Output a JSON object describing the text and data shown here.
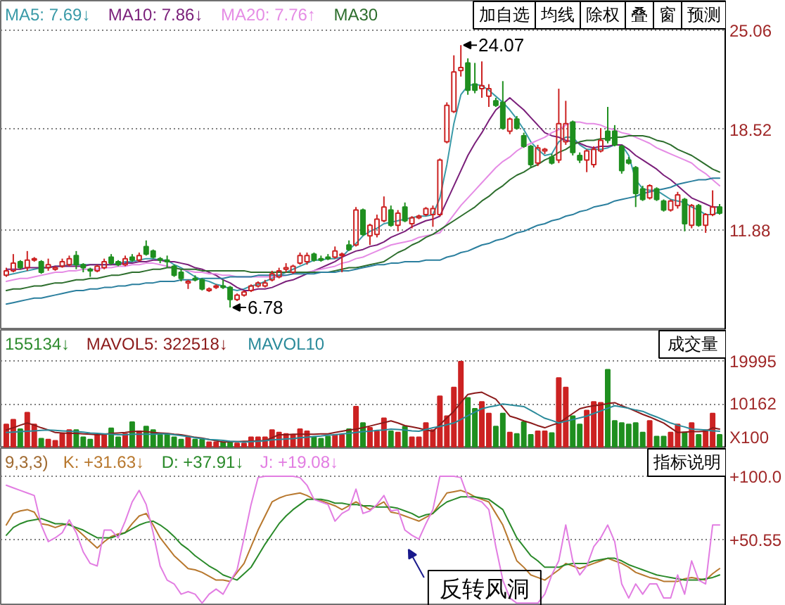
{
  "chart_data": [
    {
      "type": "candlestick",
      "legend": "top left",
      "grid": "y",
      "tick_labels": "y",
      "ylim": [
        5.3,
        27.0
      ],
      "yticks": [
        25.06,
        18.52,
        11.88
      ],
      "categories": [
        null,
        null,
        null,
        null,
        null,
        null,
        null,
        null,
        null,
        null,
        null,
        null,
        null,
        null,
        null,
        null,
        null,
        null,
        null,
        null,
        null,
        null,
        null,
        null,
        null,
        null,
        null,
        null,
        null,
        null,
        null,
        null,
        null,
        null,
        null,
        null,
        null,
        null,
        null,
        null,
        null,
        null,
        null,
        null,
        null,
        null,
        null,
        null,
        null,
        null,
        null,
        null,
        null,
        null,
        null,
        null,
        null,
        null,
        null,
        null,
        null,
        null,
        null,
        null,
        null,
        null,
        null,
        null,
        null,
        null,
        null,
        null,
        null,
        null,
        null,
        null,
        null,
        null,
        null,
        null,
        null,
        null,
        null,
        null,
        null,
        null,
        null,
        null,
        null,
        null,
        null,
        null,
        null,
        null,
        null,
        null,
        null,
        null,
        null,
        null,
        null,
        null,
        null
      ],
      "ohlc": [
        [
          8.9,
          9.4,
          8.8,
          9.2
        ],
        [
          9.2,
          10.3,
          9.1,
          9.7
        ],
        [
          9.8,
          9.9,
          9.3,
          9.4
        ],
        [
          9.4,
          10.5,
          9.2,
          9.9
        ],
        [
          9.9,
          10.1,
          9.8,
          10.0
        ],
        [
          9.8,
          9.9,
          9.0,
          9.1
        ],
        [
          9.4,
          10.0,
          9.2,
          9.6
        ],
        [
          9.3,
          9.5,
          9.2,
          9.4
        ],
        [
          9.5,
          10.0,
          9.4,
          9.8
        ],
        [
          9.6,
          10.2,
          9.5,
          10.0
        ],
        [
          10.2,
          10.5,
          9.3,
          9.6
        ],
        [
          9.6,
          9.7,
          9.1,
          9.4
        ],
        [
          9.3,
          9.4,
          8.8,
          9.2
        ],
        [
          9.2,
          9.6,
          9.1,
          9.5
        ],
        [
          9.4,
          10.0,
          9.3,
          9.8
        ],
        [
          10.1,
          10.3,
          9.6,
          9.7
        ],
        [
          9.8,
          9.9,
          9.5,
          9.6
        ],
        [
          9.6,
          10.2,
          9.5,
          10.0
        ],
        [
          10.1,
          10.3,
          9.8,
          9.9
        ],
        [
          9.9,
          10.4,
          9.8,
          10.2
        ],
        [
          10.8,
          11.2,
          10.2,
          10.3
        ],
        [
          10.5,
          10.6,
          10.0,
          10.1
        ],
        [
          10.0,
          10.1,
          9.7,
          9.9
        ],
        [
          9.9,
          10.2,
          9.4,
          9.8
        ],
        [
          9.5,
          9.6,
          8.8,
          8.9
        ],
        [
          9.1,
          9.3,
          8.5,
          8.7
        ],
        [
          8.4,
          8.6,
          8.0,
          8.5
        ],
        [
          8.7,
          8.9,
          8.5,
          8.6
        ],
        [
          8.6,
          8.7,
          7.9,
          8.0
        ],
        [
          7.9,
          8.1,
          7.8,
          8.0
        ],
        [
          8.1,
          8.3,
          8.0,
          8.2
        ],
        [
          8.2,
          8.6,
          8.0,
          8.1
        ],
        [
          8.1,
          8.2,
          6.78,
          7.3
        ],
        [
          7.3,
          7.7,
          7.2,
          7.6
        ],
        [
          7.6,
          7.9,
          7.5,
          7.8
        ],
        [
          7.9,
          8.3,
          7.8,
          8.2
        ],
        [
          8.2,
          8.5,
          8.1,
          8.4
        ],
        [
          8.2,
          8.6,
          8.1,
          8.4
        ],
        [
          8.6,
          9.2,
          8.5,
          9.0
        ],
        [
          8.8,
          9.4,
          8.7,
          9.2
        ],
        [
          9.3,
          9.7,
          9.1,
          9.4
        ],
        [
          9.1,
          9.6,
          9.0,
          9.5
        ],
        [
          9.7,
          10.4,
          9.6,
          10.2
        ],
        [
          9.8,
          10.4,
          9.6,
          10.2
        ],
        [
          10.3,
          10.4,
          9.8,
          9.9
        ],
        [
          10.0,
          10.2,
          9.8,
          9.9
        ],
        [
          10.1,
          10.3,
          9.9,
          10.0
        ],
        [
          10.1,
          10.8,
          10.0,
          10.5
        ],
        [
          10.2,
          10.4,
          9.1,
          10.3
        ],
        [
          10.9,
          11.2,
          10.5,
          10.6
        ],
        [
          10.9,
          13.4,
          10.8,
          13.2
        ],
        [
          13.2,
          13.3,
          11.5,
          11.6
        ],
        [
          11.5,
          12.3,
          10.9,
          12.2
        ],
        [
          11.6,
          12.9,
          11.4,
          12.6
        ],
        [
          12.5,
          14.1,
          12.4,
          13.4
        ],
        [
          13.2,
          13.5,
          12.1,
          12.2
        ],
        [
          12.2,
          13.2,
          11.8,
          13.0
        ],
        [
          13.4,
          13.7,
          12.4,
          12.5
        ],
        [
          12.3,
          12.8,
          12.0,
          12.7
        ],
        [
          12.7,
          12.9,
          12.6,
          12.8
        ],
        [
          12.9,
          13.4,
          12.8,
          13.3
        ],
        [
          12.9,
          13.5,
          12.1,
          13.3
        ],
        [
          12.9,
          16.6,
          12.8,
          16.5
        ],
        [
          17.7,
          20.3,
          17.6,
          20.1
        ],
        [
          19.7,
          23.4,
          19.6,
          22.3
        ],
        [
          22.4,
          24.07,
          22.0,
          22.6
        ],
        [
          22.9,
          23.2,
          20.8,
          21.1
        ],
        [
          21.5,
          22.9,
          20.9,
          21.1
        ],
        [
          21.2,
          23.0,
          20.6,
          21.4
        ],
        [
          20.7,
          21.5,
          20.0,
          21.2
        ],
        [
          20.4,
          20.6,
          20.0,
          20.1
        ],
        [
          20.3,
          21.7,
          18.5,
          18.6
        ],
        [
          18.4,
          19.3,
          18.2,
          19.2
        ],
        [
          19.2,
          19.4,
          18.5,
          18.6
        ],
        [
          18.1,
          18.3,
          17.3,
          17.4
        ],
        [
          17.4,
          17.5,
          16.0,
          16.2
        ],
        [
          16.3,
          17.5,
          16.1,
          17.3
        ],
        [
          17.1,
          17.3,
          16.9,
          17.2
        ],
        [
          16.7,
          16.9,
          16.2,
          16.3
        ],
        [
          16.5,
          21.2,
          16.3,
          18.9
        ],
        [
          17.7,
          20.4,
          17.5,
          18.9
        ],
        [
          19.0,
          19.1,
          16.8,
          17.0
        ],
        [
          16.8,
          17.0,
          16.3,
          16.5
        ],
        [
          16.5,
          17.2,
          15.7,
          17.1
        ],
        [
          16.2,
          17.4,
          16.0,
          17.2
        ],
        [
          17.1,
          18.6,
          17.0,
          17.8
        ],
        [
          18.4,
          20.0,
          17.6,
          17.8
        ],
        [
          18.4,
          18.8,
          17.4,
          17.5
        ],
        [
          17.4,
          17.5,
          15.6,
          15.8
        ],
        [
          16.5,
          16.7,
          16.2,
          16.3
        ],
        [
          16.0,
          16.1,
          13.4,
          14.3
        ],
        [
          14.6,
          14.8,
          13.8,
          13.9
        ],
        [
          14.0,
          14.9,
          13.9,
          14.8
        ],
        [
          14.6,
          14.7,
          13.8,
          13.9
        ],
        [
          13.8,
          13.9,
          13.1,
          13.2
        ],
        [
          13.2,
          13.9,
          13.1,
          13.8
        ],
        [
          13.5,
          14.4,
          13.3,
          14.2
        ],
        [
          13.9,
          14.0,
          11.8,
          12.3
        ],
        [
          12.2,
          13.6,
          12.0,
          13.5
        ],
        [
          13.5,
          13.6,
          12.1,
          12.2
        ],
        [
          12.2,
          13.0,
          11.7,
          12.9
        ],
        [
          12.9,
          14.5,
          12.8,
          13.4
        ],
        [
          13.4,
          13.6,
          12.9,
          13.0
        ]
      ],
      "colors": [
        "#cc2222",
        "#cc2222",
        "#1f8f1f",
        "#cc2222",
        "#cc2222",
        "#1f8f1f",
        "#cc2222",
        "#cc2222",
        "#cc2222",
        "#cc2222",
        "#1f8f1f",
        "#1f8f1f",
        "#1f8f1f",
        "#cc2222",
        "#cc2222",
        "#1f8f1f",
        "#1f8f1f",
        "#cc2222",
        "#1f8f1f",
        "#cc2222",
        "#1f8f1f",
        "#1f8f1f",
        "#1f8f1f",
        "#1f8f1f",
        "#1f8f1f",
        "#1f8f1f",
        "#cc2222",
        "#1f8f1f",
        "#1f8f1f",
        "#cc2222",
        "#cc2222",
        "#1f8f1f",
        "#1f8f1f",
        "#cc2222",
        "#cc2222",
        "#cc2222",
        "#cc2222",
        "#cc2222",
        "#cc2222",
        "#cc2222",
        "#cc2222",
        "#cc2222",
        "#cc2222",
        "#cc2222",
        "#1f8f1f",
        "#1f8f1f",
        "#1f8f1f",
        "#cc2222",
        "#cc2222",
        "#1f8f1f",
        "#cc2222",
        "#1f8f1f",
        "#cc2222",
        "#cc2222",
        "#cc2222",
        "#1f8f1f",
        "#cc2222",
        "#1f8f1f",
        "#cc2222",
        "#cc2222",
        "#cc2222",
        "#cc2222",
        "#cc2222",
        "#cc2222",
        "#cc2222",
        "#cc2222",
        "#1f8f1f",
        "#1f8f1f",
        "#cc2222",
        "#cc2222",
        "#1f8f1f",
        "#1f8f1f",
        "#cc2222",
        "#1f8f1f",
        "#1f8f1f",
        "#1f8f1f",
        "#cc2222",
        "#cc2222",
        "#1f8f1f",
        "#cc2222",
        "#cc2222",
        "#1f8f1f",
        "#1f8f1f",
        "#cc2222",
        "#cc2222",
        "#cc2222",
        "#1f8f1f",
        "#1f8f1f",
        "#1f8f1f",
        "#1f8f1f",
        "#1f8f1f",
        "#1f8f1f",
        "#cc2222",
        "#1f8f1f",
        "#1f8f1f",
        "#cc2222",
        "#cc2222",
        "#1f8f1f",
        "#cc2222",
        "#1f8f1f",
        "#cc2222",
        "#cc2222",
        "#1f8f1f"
      ],
      "series": [
        {
          "name": "MA5: 7.69↓",
          "type": "line",
          "color": "#3a9aa8",
          "values": [
            8.9,
            9.0,
            9.1,
            9.2,
            9.3,
            9.4,
            9.4,
            9.5,
            9.5,
            9.6,
            9.6,
            9.6,
            9.6,
            9.6,
            9.6,
            9.6,
            9.7,
            9.8,
            9.8,
            9.9,
            10.0,
            10.0,
            9.9,
            9.9,
            9.6,
            9.4,
            9.1,
            8.8,
            8.6,
            8.5,
            8.3,
            8.2,
            8.0,
            7.9,
            8.0,
            8.2,
            8.3,
            8.5,
            8.7,
            8.9,
            9.1,
            9.3,
            9.5,
            9.7,
            9.9,
            9.9,
            10.0,
            10.0,
            10.1,
            10.6,
            11.0,
            11.5,
            11.8,
            12.0,
            12.3,
            12.4,
            12.5,
            12.6,
            12.7,
            12.8,
            12.8,
            12.9,
            14.0,
            16.2,
            18.9,
            20.8,
            21.4,
            21.5,
            21.4,
            21.1,
            20.7,
            20.3,
            19.8,
            19.2,
            18.5,
            17.7,
            17.2,
            16.8,
            16.9,
            17.7,
            18.0,
            18.0,
            17.5,
            17.2,
            17.2,
            17.2,
            17.3,
            17.5,
            17.5,
            16.8,
            15.2,
            14.6,
            14.5,
            14.5,
            14.2,
            13.9,
            13.8,
            13.7,
            13.4,
            13.2,
            12.9,
            12.9,
            13.1
          ]
        },
        {
          "name": "MA10: 7.86↓",
          "type": "line",
          "color": "#7a1f7a",
          "values": [
            9.3,
            9.3,
            9.3,
            9.4,
            9.4,
            9.4,
            9.4,
            9.5,
            9.5,
            9.5,
            9.5,
            9.5,
            9.6,
            9.6,
            9.6,
            9.6,
            9.6,
            9.7,
            9.7,
            9.8,
            9.8,
            9.9,
            9.9,
            9.8,
            9.8,
            9.7,
            9.6,
            9.4,
            9.3,
            9.1,
            8.9,
            8.6,
            8.4,
            8.1,
            7.9,
            7.9,
            8.0,
            8.0,
            8.1,
            8.3,
            8.5,
            8.6,
            8.8,
            9.0,
            9.2,
            9.4,
            9.6,
            9.8,
            10.1,
            10.3,
            10.5,
            10.6,
            10.8,
            10.9,
            11.1,
            11.4,
            11.6,
            11.8,
            12.1,
            12.3,
            12.5,
            12.6,
            12.8,
            13.8,
            14.8,
            15.8,
            16.8,
            17.6,
            18.3,
            19.1,
            19.8,
            20.2,
            20.6,
            20.2,
            19.8,
            19.3,
            18.8,
            18.3,
            18.1,
            18.0,
            17.8,
            17.7,
            17.6,
            17.4,
            17.3,
            17.4,
            17.4,
            17.5,
            17.5,
            17.2,
            16.8,
            16.5,
            16.2,
            15.9,
            15.5,
            15.2,
            14.8,
            14.4,
            14.0,
            13.8,
            13.6,
            13.4,
            13.4
          ]
        },
        {
          "name": "MA20: 7.76↑",
          "type": "line",
          "color": "#e58ce5",
          "values": [
            8.5,
            8.6,
            8.7,
            8.7,
            8.8,
            8.9,
            9.0,
            9.1,
            9.1,
            9.2,
            9.2,
            9.3,
            9.3,
            9.3,
            9.4,
            9.4,
            9.5,
            9.5,
            9.6,
            9.6,
            9.7,
            9.7,
            9.6,
            9.5,
            9.4,
            9.3,
            9.2,
            9.1,
            9.1,
            9.0,
            9.0,
            8.9,
            8.9,
            8.8,
            8.8,
            8.8,
            8.8,
            8.8,
            8.8,
            8.8,
            8.9,
            9.0,
            9.1,
            9.1,
            9.2,
            9.3,
            9.4,
            9.5,
            9.7,
            9.8,
            10.0,
            10.1,
            10.3,
            10.5,
            10.7,
            10.9,
            11.0,
            11.1,
            11.2,
            11.4,
            11.5,
            11.6,
            11.7,
            12.3,
            12.9,
            13.5,
            14.0,
            14.5,
            15.0,
            15.5,
            16.0,
            16.4,
            16.7,
            17.1,
            17.4,
            17.6,
            17.8,
            18.0,
            18.3,
            18.5,
            18.8,
            19.0,
            19.0,
            18.9,
            18.9,
            18.8,
            18.6,
            18.5,
            18.3,
            18.2,
            18.0,
            17.8,
            17.6,
            17.3,
            17.1,
            16.9,
            16.7,
            16.5,
            16.3,
            15.9,
            15.6,
            15.2,
            14.8
          ]
        },
        {
          "name": "MA30",
          "type": "line",
          "color": "#2d6e2d",
          "values": [
            7.9,
            8.0,
            8.0,
            8.1,
            8.2,
            8.2,
            8.3,
            8.4,
            8.4,
            8.5,
            8.6,
            8.6,
            8.7,
            8.7,
            8.8,
            8.9,
            8.9,
            9.0,
            9.1,
            9.1,
            9.2,
            9.3,
            9.3,
            9.4,
            9.4,
            9.3,
            9.3,
            9.3,
            9.2,
            9.2,
            9.2,
            9.2,
            9.2,
            9.2,
            9.2,
            9.1,
            9.1,
            9.1,
            9.1,
            9.1,
            9.1,
            9.1,
            9.1,
            9.1,
            9.1,
            9.1,
            9.1,
            9.2,
            9.3,
            9.4,
            9.4,
            9.5,
            9.6,
            9.7,
            9.8,
            10.1,
            10.4,
            10.6,
            10.9,
            11.1,
            11.4,
            11.6,
            11.9,
            12.2,
            12.5,
            12.8,
            13.1,
            13.4,
            13.8,
            14.1,
            14.5,
            14.8,
            15.2,
            15.5,
            15.7,
            16.0,
            16.2,
            16.5,
            16.7,
            17.0,
            17.2,
            17.5,
            17.7,
            17.8,
            17.8,
            17.9,
            17.9,
            18.0,
            18.0,
            18.1,
            18.1,
            18.1,
            18.0,
            17.8,
            17.7,
            17.5,
            17.2,
            17.0,
            16.8,
            16.5,
            16.2,
            15.9,
            15.7
          ]
        },
        {
          "type": "line",
          "color": "#2b7f9e",
          "values": [
            7.0,
            7.1,
            7.2,
            7.3,
            7.4,
            7.4,
            7.5,
            7.6,
            7.7,
            7.8,
            7.9,
            7.9,
            8.0,
            8.0,
            8.1,
            8.1,
            8.2,
            8.2,
            8.3,
            8.3,
            8.4,
            8.4,
            8.5,
            8.5,
            8.5,
            8.6,
            8.6,
            8.6,
            8.7,
            8.7,
            8.7,
            8.7,
            8.8,
            8.8,
            8.8,
            8.8,
            8.9,
            8.9,
            8.9,
            8.9,
            8.9,
            9.0,
            9.0,
            9.0,
            9.0,
            9.1,
            9.1,
            9.1,
            9.2,
            9.2,
            9.3,
            9.4,
            9.5,
            9.6,
            9.6,
            9.7,
            9.7,
            9.8,
            9.8,
            9.8,
            9.9,
            9.9,
            9.9,
            10.1,
            10.2,
            10.4,
            10.5,
            10.7,
            10.9,
            11.0,
            11.2,
            11.3,
            11.5,
            11.7,
            11.8,
            12.0,
            12.2,
            12.3,
            12.5,
            12.6,
            12.8,
            12.9,
            13.1,
            13.2,
            13.4,
            13.5,
            13.6,
            13.8,
            13.9,
            14.0,
            14.1,
            14.3,
            14.4,
            14.5,
            14.6,
            14.7,
            14.9,
            15.0,
            15.1,
            15.2,
            15.2,
            15.3,
            15.3
          ]
        }
      ],
      "annotations": [
        "24.07",
        "6.78",
        "加自选",
        "均线",
        "除权",
        "叠",
        "窗",
        "预测"
      ]
    },
    {
      "type": "bar",
      "legend": "top left",
      "grid": "y",
      "tick_labels": "y",
      "ylim": [
        0,
        27300
      ],
      "yticks": [
        19995,
        10162
      ],
      "categories": [
        null,
        null,
        null,
        null,
        null,
        null,
        null,
        null,
        null,
        null,
        null,
        null,
        null,
        null,
        null,
        null,
        null,
        null,
        null,
        null,
        null,
        null,
        null,
        null,
        null,
        null,
        null,
        null,
        null,
        null,
        null,
        null,
        null,
        null,
        null,
        null,
        null,
        null,
        null,
        null,
        null,
        null,
        null,
        null,
        null,
        null,
        null,
        null,
        null,
        null,
        null,
        null,
        null,
        null,
        null,
        null,
        null,
        null,
        null,
        null,
        null,
        null,
        null,
        null,
        null,
        null,
        null,
        null,
        null,
        null,
        null,
        null,
        null,
        null,
        null,
        null,
        null,
        null,
        null,
        null,
        null,
        null,
        null,
        null,
        null,
        null,
        null,
        null,
        null,
        null,
        null,
        null,
        null,
        null,
        null,
        null,
        null,
        null,
        null,
        null,
        null,
        null,
        null
      ],
      "series": [
        {
          "name": "155134↓",
          "type": "bar",
          "color": "#2e8b2e",
          "values": [
            5500,
            6600,
            4400,
            8200,
            5500,
            2200,
            2000,
            1700,
            3300,
            4200,
            4200,
            2500,
            2000,
            3100,
            3100,
            4600,
            2500,
            3300,
            6000,
            3900,
            5000,
            4200,
            3100,
            3300,
            2500,
            2000,
            2500,
            2000,
            2000,
            1400,
            1400,
            1400,
            1400,
            1100,
            1100,
            2500,
            2500,
            2500,
            4200,
            3600,
            3300,
            3100,
            4400,
            3900,
            2500,
            2200,
            2700,
            3100,
            3100,
            4400,
            9600,
            5800,
            4700,
            3900,
            6900,
            3900,
            3600,
            5000,
            2500,
            2500,
            5800,
            4200,
            12000,
            7400,
            14000,
            20000,
            11600,
            9100,
            10700,
            8000,
            5000,
            8000,
            3600,
            3300,
            6000,
            3100,
            3900,
            3900,
            3500,
            16200,
            14000,
            7400,
            5500,
            8700,
            10700,
            10500,
            18100,
            6300,
            5800,
            5500,
            5800,
            3600,
            6300,
            2700,
            2700,
            3600,
            5500,
            3600,
            5800,
            3100,
            4200,
            8000,
            3100
          ],
          "colors": [
            "#cc2222",
            "#cc2222",
            "#1f8f1f",
            "#cc2222",
            "#cc2222",
            "#1f8f1f",
            "#cc2222",
            "#cc2222",
            "#cc2222",
            "#cc2222",
            "#1f8f1f",
            "#1f8f1f",
            "#1f8f1f",
            "#cc2222",
            "#cc2222",
            "#1f8f1f",
            "#1f8f1f",
            "#cc2222",
            "#1f8f1f",
            "#cc2222",
            "#1f8f1f",
            "#1f8f1f",
            "#1f8f1f",
            "#1f8f1f",
            "#1f8f1f",
            "#1f8f1f",
            "#cc2222",
            "#1f8f1f",
            "#1f8f1f",
            "#cc2222",
            "#cc2222",
            "#1f8f1f",
            "#1f8f1f",
            "#cc2222",
            "#cc2222",
            "#cc2222",
            "#cc2222",
            "#cc2222",
            "#cc2222",
            "#cc2222",
            "#cc2222",
            "#cc2222",
            "#cc2222",
            "#cc2222",
            "#1f8f1f",
            "#1f8f1f",
            "#1f8f1f",
            "#cc2222",
            "#cc2222",
            "#1f8f1f",
            "#cc2222",
            "#1f8f1f",
            "#cc2222",
            "#cc2222",
            "#cc2222",
            "#1f8f1f",
            "#cc2222",
            "#1f8f1f",
            "#cc2222",
            "#cc2222",
            "#cc2222",
            "#cc2222",
            "#cc2222",
            "#cc2222",
            "#cc2222",
            "#cc2222",
            "#1f8f1f",
            "#1f8f1f",
            "#cc2222",
            "#cc2222",
            "#1f8f1f",
            "#1f8f1f",
            "#cc2222",
            "#1f8f1f",
            "#1f8f1f",
            "#1f8f1f",
            "#cc2222",
            "#cc2222",
            "#1f8f1f",
            "#cc2222",
            "#cc2222",
            "#1f8f1f",
            "#1f8f1f",
            "#cc2222",
            "#cc2222",
            "#cc2222",
            "#1f8f1f",
            "#1f8f1f",
            "#1f8f1f",
            "#1f8f1f",
            "#1f8f1f",
            "#1f8f1f",
            "#cc2222",
            "#1f8f1f",
            "#1f8f1f",
            "#cc2222",
            "#cc2222",
            "#1f8f1f",
            "#cc2222",
            "#1f8f1f",
            "#cc2222",
            "#cc2222",
            "#1f8f1f"
          ]
        },
        {
          "name": "MAVOL5: 322518↓",
          "type": "line",
          "color": "#8b1a1a",
          "values": [
            4200,
            4700,
            5300,
            5800,
            5300,
            4700,
            4200,
            3600,
            3500,
            3400,
            3400,
            3300,
            3200,
            3100,
            3200,
            3400,
            3500,
            3600,
            3800,
            3900,
            3800,
            3600,
            3500,
            3400,
            3200,
            3100,
            2800,
            2500,
            2300,
            2000,
            1700,
            1400,
            1500,
            1500,
            1600,
            1600,
            1700,
            1700,
            2400,
            3100,
            3100,
            3200,
            3200,
            3200,
            3200,
            3300,
            3300,
            3600,
            3900,
            4200,
            4400,
            4700,
            5100,
            5500,
            5900,
            6300,
            5800,
            5200,
            4900,
            4600,
            4200,
            3900,
            5400,
            7000,
            8500,
            10500,
            12400,
            12700,
            12900,
            12100,
            11300,
            9400,
            7400,
            6900,
            6300,
            5800,
            5200,
            4700,
            5300,
            5800,
            6900,
            8000,
            9100,
            9500,
            9800,
            10000,
            10300,
            10500,
            9800,
            9200,
            8500,
            7800,
            7200,
            6500,
            5800,
            4700,
            3600,
            3700,
            3800,
            3800,
            3900,
            4700,
            4400
          ]
        },
        {
          "name": "MAVOL10",
          "type": "line",
          "color": "#2a8a9a",
          "values": [
            3600,
            3700,
            3800,
            3900,
            4000,
            4100,
            4200,
            4100,
            4000,
            3900,
            3800,
            3700,
            3500,
            3400,
            3300,
            3200,
            3100,
            3100,
            3200,
            3200,
            3200,
            3200,
            3300,
            3300,
            3100,
            2900,
            2700,
            2400,
            2200,
            2000,
            1900,
            1800,
            1600,
            1500,
            1400,
            1500,
            1600,
            1700,
            1900,
            2000,
            2100,
            2200,
            2400,
            2500,
            2700,
            2800,
            3000,
            3100,
            3300,
            3400,
            3600,
            3800,
            3900,
            4100,
            4200,
            4400,
            4300,
            4200,
            4000,
            3900,
            4300,
            4700,
            5000,
            5400,
            5800,
            6600,
            7500,
            8300,
            9100,
            9500,
            9800,
            10200,
            10000,
            9800,
            9600,
            8700,
            7800,
            6900,
            6400,
            5800,
            6200,
            6600,
            7000,
            7400,
            8000,
            8600,
            9200,
            9800,
            9500,
            9200,
            8800,
            8500,
            7800,
            7200,
            6500,
            5800,
            5300,
            4900,
            4400,
            4300,
            4200,
            4000,
            3900
          ]
        }
      ],
      "annotations": [
        "成交量",
        "X100"
      ]
    },
    {
      "type": "line",
      "legend": "top left",
      "grid": "y",
      "tick_labels": "y",
      "ylim": [
        -1,
        122
      ],
      "yticks": [
        {
          "value": 100,
          "label": "+100.0"
        },
        {
          "value": 50.55,
          "label": "+50.55"
        }
      ],
      "categories": [
        null,
        null,
        null,
        null,
        null,
        null,
        null,
        null,
        null,
        null,
        null,
        null,
        null,
        null,
        null,
        null,
        null,
        null,
        null,
        null,
        null,
        null,
        null,
        null,
        null,
        null,
        null,
        null,
        null,
        null,
        null,
        null,
        null,
        null,
        null,
        null,
        null,
        null,
        null,
        null,
        null,
        null,
        null,
        null,
        null,
        null,
        null,
        null,
        null,
        null,
        null,
        null,
        null,
        null,
        null,
        null,
        null,
        null,
        null,
        null,
        null,
        null,
        null,
        null,
        null,
        null,
        null,
        null,
        null,
        null,
        null,
        null,
        null,
        null,
        null,
        null,
        null,
        null,
        null,
        null,
        null,
        null,
        null,
        null,
        null,
        null,
        null,
        null,
        null,
        null,
        null,
        null,
        null,
        null,
        null,
        null,
        null,
        null,
        null,
        null,
        null,
        null,
        null
      ],
      "series": [
        {
          "name": "K: +31.63↓",
          "type": "line",
          "color": "#b8782e",
          "values": [
            62,
            71,
            73,
            74,
            72,
            63,
            62,
            60,
            62,
            63,
            59,
            54,
            49,
            44,
            49,
            53,
            55,
            56,
            63,
            69,
            71,
            62,
            52,
            45,
            38,
            33,
            28,
            27,
            25,
            22,
            19,
            19,
            18,
            25,
            32,
            45,
            58,
            69,
            80,
            83,
            85,
            86,
            87,
            85,
            82,
            81,
            79,
            77,
            74,
            77,
            80,
            77,
            74,
            77,
            80,
            72,
            71,
            69,
            67,
            65,
            68,
            71,
            79,
            87,
            88,
            89,
            87,
            84,
            82,
            80,
            71,
            62,
            48,
            34,
            29,
            23,
            21,
            19,
            23,
            27,
            32,
            30,
            28,
            30,
            32,
            34,
            36,
            34,
            32,
            29,
            25,
            23,
            21,
            20,
            18,
            18,
            18,
            20,
            21,
            20,
            19,
            24,
            28
          ]
        },
        {
          "name": "D: +37.91↓",
          "type": "line",
          "color": "#2a8a2a",
          "values": [
            54,
            60,
            63,
            65,
            66,
            67,
            65,
            63,
            63,
            62,
            60,
            58,
            55,
            52,
            52,
            52,
            54,
            56,
            59,
            62,
            64,
            65,
            62,
            58,
            53,
            47,
            43,
            38,
            34,
            30,
            27,
            23,
            21,
            19,
            24,
            29,
            38,
            47,
            55,
            63,
            69,
            74,
            78,
            82,
            82,
            82,
            81,
            79,
            79,
            78,
            78,
            77,
            77,
            76,
            76,
            76,
            75,
            73,
            71,
            68,
            70,
            71,
            76,
            80,
            82,
            84,
            84,
            84,
            83,
            82,
            78,
            74,
            63,
            52,
            45,
            38,
            34,
            29,
            29,
            29,
            31,
            32,
            32,
            32,
            34,
            35,
            36,
            36,
            34,
            31,
            29,
            27,
            25,
            23,
            22,
            21,
            20,
            19,
            19,
            19,
            20,
            21,
            23
          ]
        },
        {
          "name": "J: +19.08↓",
          "type": "line",
          "color": "#e27de2",
          "values": [
            93,
            91,
            89,
            87,
            85,
            62,
            49,
            52,
            56,
            66,
            56,
            41,
            32,
            30,
            58,
            58,
            52,
            65,
            80,
            89,
            78,
            56,
            30,
            19,
            16,
            8,
            10,
            8,
            1,
            8,
            12,
            8,
            18,
            27,
            52,
            78,
            99,
            100,
            100,
            100,
            100,
            100,
            99,
            93,
            82,
            80,
            78,
            65,
            71,
            74,
            90,
            71,
            73,
            78,
            85,
            73,
            74,
            58,
            54,
            51,
            63,
            74,
            100,
            100,
            100,
            99,
            84,
            82,
            80,
            74,
            45,
            19,
            5,
            1,
            1,
            1,
            1,
            8,
            23,
            34,
            62,
            34,
            23,
            30,
            45,
            52,
            62,
            49,
            16,
            5,
            16,
            8,
            16,
            16,
            5,
            5,
            23,
            8,
            34,
            19,
            16,
            62,
            62
          ]
        }
      ],
      "annotations": [
        "9,3,3)",
        "指标说明",
        "反转风洞"
      ]
    }
  ]
}
